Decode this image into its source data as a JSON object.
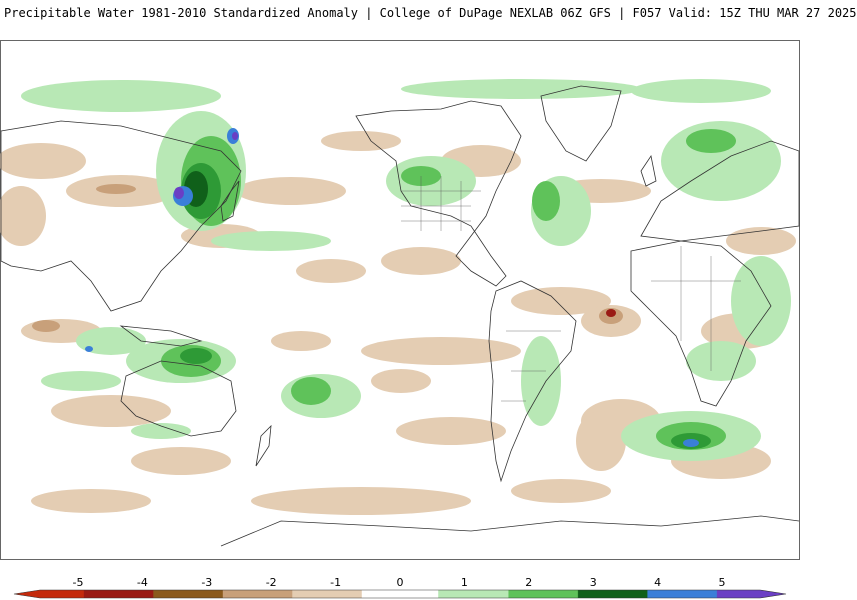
{
  "title": "Precipitable Water 1981-2010 Standardized Anomaly | College of DuPage NEXLAB  06Z GFS | F057 Valid: 15Z THU MAR 27 2025",
  "map": {
    "projection": "global cylindrical equidistant, centered on Pacific",
    "field": "standardized anomaly"
  },
  "colorbar": {
    "min": -5,
    "max": 5,
    "tick_labels": [
      "-5",
      "-4",
      "-3",
      "-2",
      "-1",
      "0",
      "1",
      "2",
      "3",
      "4",
      "5"
    ],
    "colors": {
      "neg5": "#c42a0c",
      "neg4": "#9a1a14",
      "neg3": "#8b5a1c",
      "neg2": "#c8a07a",
      "neg1": "#e4cdb3",
      "zero": "#ffffff",
      "pos1": "#b8e8b5",
      "pos2": "#5fc25a",
      "pos3": "#2e9a36",
      "pos4": "#10601a",
      "pos5": "#3a7fd8",
      "pos5_tip": "#6a3fc4"
    }
  },
  "colors": {
    "coastline": "#333333",
    "frame": "#666666"
  }
}
